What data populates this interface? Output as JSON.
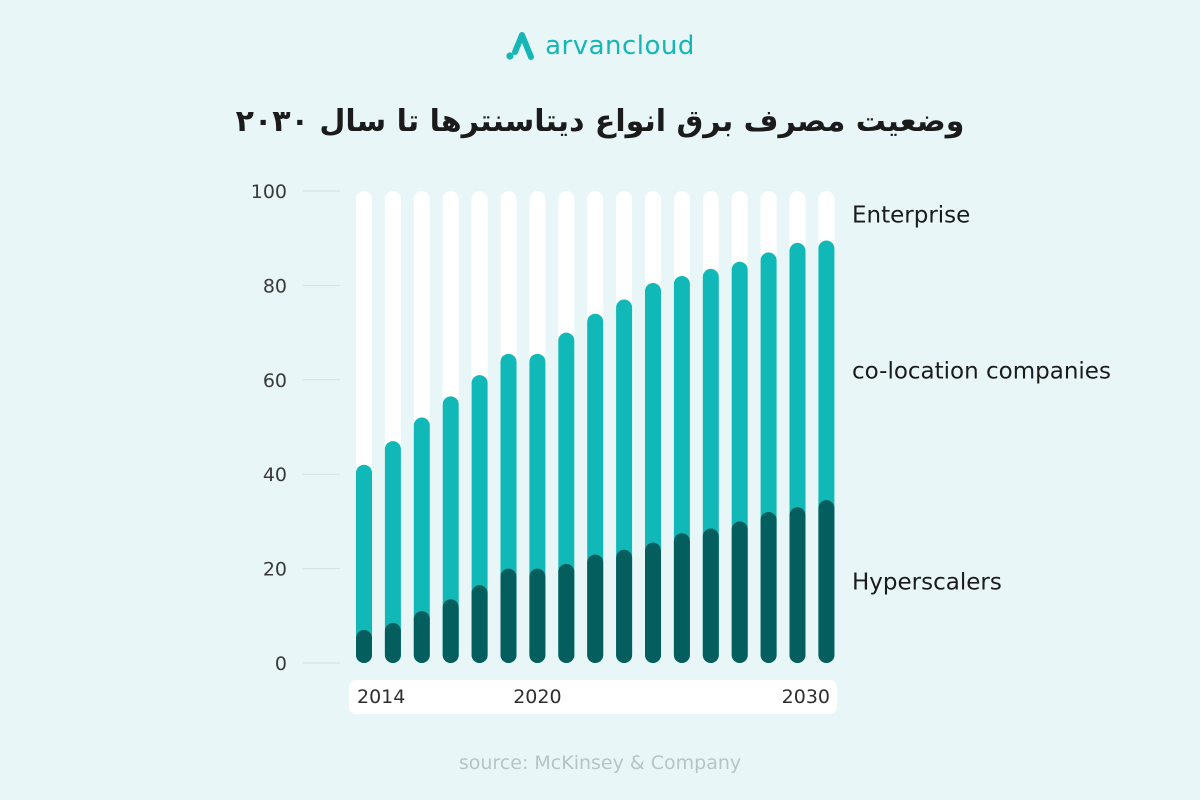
{
  "brand": {
    "name": "arvancloud",
    "logo_icon": "arvancloud-logo-icon",
    "color": "#16b6b6"
  },
  "title": "وضعیت مصرف برق انواع دیتاسنترها تا سال ۲۰۳۰",
  "source": "source: McKinsey & Company",
  "chart_data": {
    "type": "bar",
    "stacked": true,
    "x": [
      2014,
      2015,
      2016,
      2017,
      2018,
      2019,
      2020,
      2021,
      2022,
      2023,
      2024,
      2025,
      2026,
      2027,
      2028,
      2029,
      2030
    ],
    "x_tick_labels": [
      {
        "x": 2014,
        "label": "2014"
      },
      {
        "x": 2020,
        "label": "2020"
      },
      {
        "x": 2030,
        "label": "2030"
      }
    ],
    "ylim": [
      0,
      100
    ],
    "y_ticks": [
      0,
      20,
      40,
      60,
      80,
      100
    ],
    "grid": true,
    "legend_placement": "right",
    "series": [
      {
        "name": "Hyperscalers",
        "color": "#055e5e",
        "values": [
          7,
          8.5,
          11,
          13.5,
          16.5,
          20,
          20,
          21,
          23,
          24,
          25.5,
          27.5,
          28.5,
          30,
          32,
          33,
          34.5
        ]
      },
      {
        "name": "co-location companies",
        "color": "#10b8b7",
        "values": [
          35,
          38.5,
          41,
          43,
          44.5,
          45.5,
          45.5,
          49,
          51,
          53,
          55,
          54.5,
          55,
          55,
          55,
          56,
          55
        ]
      },
      {
        "name": "Enterprise",
        "color": "#ffffff",
        "values": [
          58,
          53,
          48,
          43.5,
          39,
          34.5,
          34.5,
          30,
          26,
          23,
          19.5,
          18,
          16.5,
          15,
          13,
          11,
          10.5
        ]
      }
    ]
  }
}
